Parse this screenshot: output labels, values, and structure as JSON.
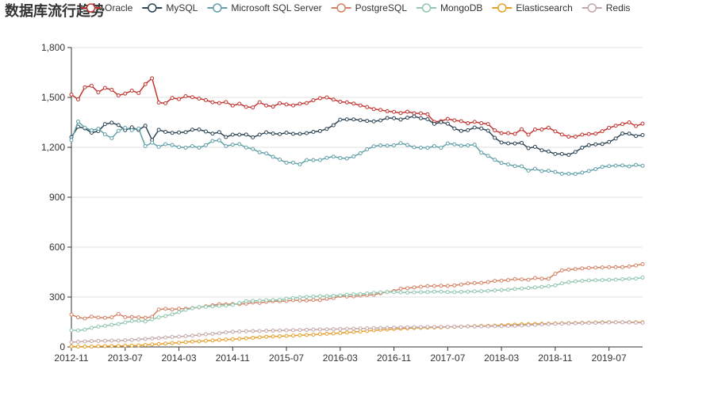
{
  "chart_data": {
    "type": "line",
    "title": "数据库流行趋势",
    "xlabel": "",
    "ylabel": "",
    "ylim": [
      0,
      1800
    ],
    "yticks": [
      0,
      300,
      600,
      900,
      1200,
      1500,
      1800
    ],
    "ytick_labels": [
      "0",
      "300",
      "600",
      "900",
      "1,200",
      "1,500",
      "1,800"
    ],
    "x": [
      "2012-11",
      "2012-12",
      "2013-01",
      "2013-02",
      "2013-03",
      "2013-04",
      "2013-05",
      "2013-06",
      "2013-07",
      "2013-08",
      "2013-09",
      "2013-10",
      "2013-11",
      "2013-12",
      "2014-01",
      "2014-02",
      "2014-03",
      "2014-04",
      "2014-05",
      "2014-06",
      "2014-07",
      "2014-08",
      "2014-09",
      "2014-10",
      "2014-11",
      "2014-12",
      "2015-01",
      "2015-02",
      "2015-03",
      "2015-04",
      "2015-05",
      "2015-06",
      "2015-07",
      "2015-08",
      "2015-09",
      "2015-10",
      "2015-11",
      "2015-12",
      "2016-01",
      "2016-02",
      "2016-03",
      "2016-04",
      "2016-05",
      "2016-06",
      "2016-07",
      "2016-08",
      "2016-09",
      "2016-10",
      "2016-11",
      "2016-12",
      "2017-01",
      "2017-02",
      "2017-03",
      "2017-04",
      "2017-05",
      "2017-06",
      "2017-07",
      "2017-08",
      "2017-09",
      "2017-10",
      "2017-11",
      "2017-12",
      "2018-01",
      "2018-02",
      "2018-03",
      "2018-04",
      "2018-05",
      "2018-06",
      "2018-07",
      "2018-08",
      "2018-09",
      "2018-10",
      "2018-11",
      "2018-12",
      "2019-01",
      "2019-02",
      "2019-03",
      "2019-04",
      "2019-05",
      "2019-06",
      "2019-07",
      "2019-08",
      "2019-09",
      "2019-10",
      "2019-11",
      "2019-12"
    ],
    "xtick_labels": [
      "2012-11",
      "2013-07",
      "2014-03",
      "2014-11",
      "2015-07",
      "2016-03",
      "2016-11",
      "2017-07",
      "2018-03",
      "2018-11",
      "2019-07"
    ],
    "legend_position": "top",
    "series": [
      {
        "name": "Oracle",
        "color": "#c23531",
        "values": [
          1517,
          1488,
          1561,
          1570,
          1531,
          1557,
          1546,
          1512,
          1523,
          1541,
          1526,
          1580,
          1615,
          1469,
          1465,
          1497,
          1490,
          1507,
          1501,
          1493,
          1484,
          1471,
          1466,
          1472,
          1451,
          1462,
          1443,
          1440,
          1471,
          1451,
          1445,
          1465,
          1458,
          1452,
          1462,
          1466,
          1483,
          1495,
          1500,
          1487,
          1474,
          1470,
          1463,
          1452,
          1442,
          1430,
          1425,
          1417,
          1413,
          1406,
          1414,
          1405,
          1404,
          1399,
          1353,
          1357,
          1371,
          1362,
          1357,
          1345,
          1353,
          1345,
          1340,
          1302,
          1285,
          1285,
          1281,
          1309,
          1276,
          1307,
          1307,
          1318,
          1296,
          1277,
          1264,
          1264,
          1276,
          1280,
          1282,
          1297,
          1317,
          1330,
          1340,
          1350,
          1328,
          1342
        ]
      },
      {
        "name": "MySQL",
        "color": "#2f4554",
        "values": [
          1261,
          1324,
          1314,
          1288,
          1297,
          1339,
          1348,
          1334,
          1303,
          1320,
          1304,
          1330,
          1244,
          1305,
          1293,
          1287,
          1289,
          1291,
          1306,
          1307,
          1295,
          1282,
          1291,
          1262,
          1276,
          1276,
          1277,
          1260,
          1276,
          1290,
          1283,
          1279,
          1288,
          1281,
          1281,
          1285,
          1293,
          1298,
          1311,
          1333,
          1366,
          1368,
          1368,
          1363,
          1359,
          1356,
          1362,
          1376,
          1375,
          1367,
          1378,
          1386,
          1375,
          1369,
          1341,
          1351,
          1342,
          1313,
          1299,
          1303,
          1319,
          1313,
          1300,
          1257,
          1229,
          1224,
          1223,
          1227,
          1195,
          1203,
          1182,
          1175,
          1160,
          1160,
          1155,
          1172,
          1198,
          1213,
          1218,
          1220,
          1232,
          1253,
          1283,
          1282,
          1268,
          1274
        ]
      },
      {
        "name": "Microsoft SQL Server",
        "color": "#61a0a8",
        "values": [
          1243,
          1355,
          1318,
          1302,
          1312,
          1278,
          1255,
          1299,
          1318,
          1303,
          1313,
          1207,
          1228,
          1203,
          1219,
          1214,
          1201,
          1198,
          1207,
          1198,
          1213,
          1238,
          1242,
          1207,
          1216,
          1219,
          1199,
          1190,
          1170,
          1163,
          1143,
          1126,
          1108,
          1108,
          1098,
          1123,
          1123,
          1124,
          1137,
          1144,
          1136,
          1133,
          1145,
          1164,
          1188,
          1206,
          1212,
          1210,
          1212,
          1225,
          1214,
          1200,
          1198,
          1197,
          1207,
          1197,
          1223,
          1218,
          1210,
          1212,
          1216,
          1168,
          1149,
          1125,
          1106,
          1097,
          1087,
          1086,
          1060,
          1071,
          1057,
          1059,
          1052,
          1041,
          1041,
          1040,
          1048,
          1058,
          1069,
          1083,
          1087,
          1090,
          1091,
          1085,
          1094,
          1089
        ]
      },
      {
        "name": "PostgreSQL",
        "color": "#d48265",
        "values": [
          194,
          178,
          171,
          182,
          177,
          175,
          178,
          198,
          179,
          180,
          178,
          175,
          181,
          225,
          229,
          225,
          230,
          230,
          234,
          238,
          244,
          250,
          257,
          256,
          258,
          258,
          260,
          267,
          265,
          271,
          275,
          275,
          276,
          281,
          280,
          279,
          283,
          282,
          289,
          294,
          306,
          303,
          304,
          309,
          312,
          314,
          323,
          330,
          336,
          350,
          353,
          358,
          362,
          366,
          366,
          368,
          367,
          370,
          375,
          382,
          384,
          385,
          390,
          397,
          399,
          402,
          408,
          406,
          404,
          414,
          410,
          410,
          440,
          460,
          465,
          468,
          472,
          475,
          477,
          478,
          479,
          480,
          480,
          484,
          490,
          498
        ]
      },
      {
        "name": "MongoDB",
        "color": "#91c7ae",
        "values": [
          100,
          99,
          104,
          115,
          122,
          127,
          133,
          138,
          147,
          156,
          157,
          153,
          166,
          178,
          186,
          196,
          209,
          223,
          232,
          240,
          241,
          244,
          247,
          249,
          253,
          264,
          275,
          277,
          278,
          281,
          282,
          283,
          290,
          294,
          298,
          301,
          303,
          305,
          306,
          307,
          310,
          314,
          316,
          318,
          322,
          325,
          328,
          330,
          330,
          328,
          327,
          328,
          330,
          330,
          332,
          332,
          330,
          330,
          331,
          332,
          334,
          335,
          337,
          340,
          342,
          344,
          349,
          351,
          354,
          358,
          361,
          365,
          370,
          382,
          389,
          394,
          397,
          400,
          401,
          402,
          403,
          405,
          407,
          410,
          411,
          417
        ]
      },
      {
        "name": "Elasticsearch",
        "color": "#e5a02c",
        "values": [
          3,
          2,
          2,
          2,
          4,
          5,
          5,
          6,
          7,
          8,
          9,
          12,
          15,
          17,
          20,
          23,
          25,
          29,
          32,
          34,
          37,
          39,
          42,
          44,
          46,
          49,
          52,
          55,
          58,
          61,
          63,
          64,
          66,
          68,
          70,
          72,
          74,
          77,
          79,
          81,
          84,
          87,
          90,
          93,
          96,
          100,
          103,
          105,
          108,
          110,
          112,
          114,
          115,
          116,
          117,
          118,
          120,
          121,
          122,
          124,
          125,
          126,
          127,
          128,
          130,
          132,
          134,
          136,
          137,
          138,
          139,
          140,
          141,
          142,
          143,
          144,
          145,
          146,
          147,
          148,
          149,
          149,
          149,
          149,
          148,
          148
        ]
      },
      {
        "name": "Redis",
        "color": "#c4a7a9",
        "values": [
          28,
          31,
          33,
          35,
          36,
          37,
          38,
          38,
          40,
          42,
          45,
          48,
          51,
          53,
          57,
          60,
          62,
          65,
          68,
          72,
          76,
          79,
          82,
          88,
          91,
          93,
          94,
          95,
          96,
          97,
          98,
          99,
          100,
          101,
          102,
          103,
          104,
          105,
          106,
          107,
          108,
          109,
          110,
          111,
          112,
          113,
          114,
          115,
          116,
          117,
          118,
          119,
          119,
          120,
          120,
          121,
          121,
          122,
          122,
          123,
          123,
          124,
          124,
          125,
          125,
          126,
          127,
          129,
          131,
          133,
          135,
          137,
          139,
          140,
          141,
          142,
          143,
          144,
          145,
          146,
          147,
          148,
          148,
          147,
          146,
          146
        ]
      }
    ]
  }
}
